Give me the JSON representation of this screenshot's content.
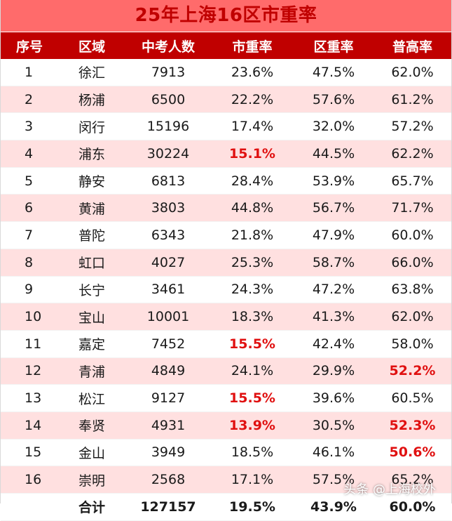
{
  "title": "25年上海16区市重率",
  "columns": [
    "序号",
    "区域",
    "中考人数",
    "市重率",
    "区重率",
    "普高率"
  ],
  "rows": [
    {
      "no": "1",
      "district": "徐汇",
      "count": "7913",
      "city_rate": "23.6%",
      "district_rate": "47.5%",
      "high_rate": "62.0%"
    },
    {
      "no": "2",
      "district": "杨浦",
      "count": "6500",
      "city_rate": "22.2%",
      "district_rate": "57.6%",
      "high_rate": "61.2%"
    },
    {
      "no": "3",
      "district": "闵行",
      "count": "15196",
      "city_rate": "17.4%",
      "district_rate": "32.0%",
      "high_rate": "57.2%"
    },
    {
      "no": "4",
      "district": "浦东",
      "count": "30224",
      "city_rate": "15.1%",
      "district_rate": "44.5%",
      "high_rate": "62.2%"
    },
    {
      "no": "5",
      "district": "静安",
      "count": "6813",
      "city_rate": "28.4%",
      "district_rate": "53.9%",
      "high_rate": "65.7%"
    },
    {
      "no": "6",
      "district": "黄浦",
      "count": "3803",
      "city_rate": "44.8%",
      "district_rate": "56.7%",
      "high_rate": "71.7%"
    },
    {
      "no": "7",
      "district": "普陀",
      "count": "6343",
      "city_rate": "21.8%",
      "district_rate": "47.9%",
      "high_rate": "60.0%"
    },
    {
      "no": "8",
      "district": "虹口",
      "count": "4027",
      "city_rate": "25.3%",
      "district_rate": "58.7%",
      "high_rate": "66.0%"
    },
    {
      "no": "9",
      "district": "长宁",
      "count": "3461",
      "city_rate": "24.3%",
      "district_rate": "47.2%",
      "high_rate": "63.8%"
    },
    {
      "no": "10",
      "district": "宝山",
      "count": "10001",
      "city_rate": "18.3%",
      "district_rate": "41.3%",
      "high_rate": "62.0%"
    },
    {
      "no": "11",
      "district": "嘉定",
      "count": "7452",
      "city_rate": "15.5%",
      "district_rate": "42.4%",
      "high_rate": "58.0%"
    },
    {
      "no": "12",
      "district": "青浦",
      "count": "4849",
      "city_rate": "24.1%",
      "district_rate": "29.9%",
      "high_rate": "52.2%"
    },
    {
      "no": "13",
      "district": "松江",
      "count": "9127",
      "city_rate": "15.5%",
      "district_rate": "39.6%",
      "high_rate": "60.5%"
    },
    {
      "no": "14",
      "district": "奉贤",
      "count": "4931",
      "city_rate": "13.9%",
      "district_rate": "30.5%",
      "high_rate": "52.3%"
    },
    {
      "no": "15",
      "district": "金山",
      "count": "3949",
      "city_rate": "18.5%",
      "district_rate": "46.1%",
      "high_rate": "50.6%"
    },
    {
      "no": "16",
      "district": "崇明",
      "count": "2568",
      "city_rate": "17.1%",
      "district_rate": "57.5%",
      "high_rate": "65.2%"
    }
  ],
  "total": {
    "label": "合计",
    "count": "127157",
    "city_rate": "19.5%",
    "district_rate": "43.9%",
    "high_rate": "60.0%"
  },
  "highlights": {
    "city_rate_rows": [
      "4",
      "11",
      "13",
      "14"
    ],
    "high_rate_rows": [
      "12",
      "14",
      "15"
    ],
    "color": "#e01010"
  },
  "colors": {
    "title_bg": "#ff6b6b",
    "title_text": "#c00000",
    "header_bg": "#c00000",
    "stripe": "#ffe0e0"
  },
  "watermark": {
    "at": "@",
    "text": "头条 @上海校外"
  }
}
